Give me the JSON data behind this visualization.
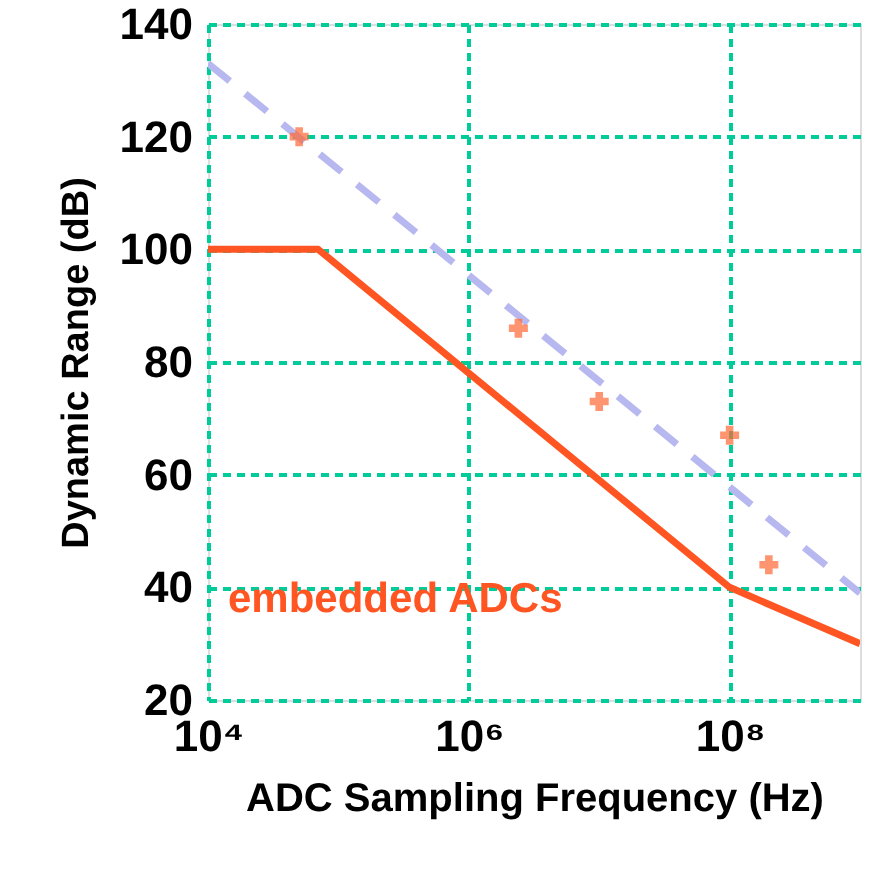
{
  "chart_data": {
    "type": "line",
    "xlabel": "ADC Sampling Frequency (Hz)",
    "ylabel": "Dynamic Range (dB)",
    "log": "x",
    "xlim": [
      10000,
      1000000000
    ],
    "ylim": [
      20,
      140
    ],
    "xticks": [
      {
        "value": 10000,
        "label": "10⁴"
      },
      {
        "value": 1000000,
        "label": "10⁶"
      },
      {
        "value": 100000000,
        "label": "10⁸"
      }
    ],
    "yticks": [
      20,
      40,
      60,
      80,
      100,
      120,
      140
    ],
    "grid": true,
    "series": [
      {
        "color": "#ff5522",
        "line_style": "solid",
        "x": [
          10000,
          70000,
          100000000,
          1000000000
        ],
        "values": [
          100,
          100,
          40,
          30
        ]
      },
      {
        "color": "#b8b8f0",
        "line_style": "dashed",
        "x": [
          10000,
          1000000000
        ],
        "values": [
          133,
          39
        ]
      },
      {
        "type": "scatter",
        "color": "#ff6633",
        "marker": "cross",
        "x": [
          50000,
          2400000,
          10000000,
          100000000,
          200000000
        ],
        "values": [
          120,
          86,
          73,
          67,
          44
        ]
      }
    ],
    "annotations": [
      "embedded ADCs"
    ]
  }
}
